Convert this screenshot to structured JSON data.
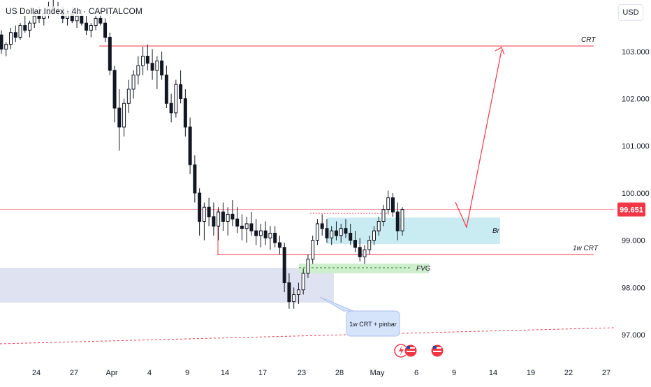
{
  "header": {
    "title": "US Dollar Index · 4h · CAPITALCOM",
    "currency": "USD"
  },
  "price_axis": {
    "ticks": [
      "103.000",
      "102.000",
      "101.000",
      "100.000",
      "99.000",
      "98.000",
      "97.000"
    ],
    "current_price": "99.651"
  },
  "time_axis": {
    "ticks": [
      "24",
      "27",
      "Apr",
      "4",
      "9",
      "14",
      "17",
      "23",
      "28",
      "May",
      "6",
      "9",
      "14",
      "19",
      "22",
      "27"
    ]
  },
  "annotations": {
    "crt_top": "CRT",
    "crt_1w": "1w CRT",
    "fvg": "FVG",
    "br": "Br",
    "callout": "1w CRT + pinbar"
  },
  "chart_data": {
    "type": "candlestick",
    "title": "US Dollar Index · 4h · CAPITALCOM",
    "currency": "USD",
    "ylim": [
      96.5,
      104.0
    ],
    "current_price": 99.651,
    "levels": {
      "crt": 103.15,
      "one_week_crt": 98.69,
      "fvg_top": 98.43,
      "fvg_bottom": 98.26
    },
    "series": [
      {
        "ohlc": [
          [
            103.35,
            103.45,
            102.95,
            103.05
          ],
          [
            103.05,
            103.2,
            102.9,
            103.15
          ],
          [
            103.15,
            103.5,
            103.05,
            103.4
          ],
          [
            103.4,
            103.55,
            103.2,
            103.3
          ],
          [
            103.3,
            103.6,
            103.25,
            103.55
          ],
          [
            103.55,
            103.75,
            103.4,
            103.45
          ],
          [
            103.45,
            103.65,
            103.3,
            103.6
          ],
          [
            103.6,
            103.85,
            103.5,
            103.75
          ],
          [
            103.75,
            103.95,
            103.6,
            103.7
          ],
          [
            103.7,
            103.85,
            103.55,
            103.8
          ],
          [
            103.8,
            104.05,
            103.7,
            103.95
          ],
          [
            103.95,
            104.1,
            103.8,
            103.9
          ],
          [
            103.9,
            104.05,
            103.75,
            103.85
          ],
          [
            103.85,
            103.95,
            103.6,
            103.7
          ],
          [
            103.7,
            103.9,
            103.55,
            103.8
          ],
          [
            103.8,
            103.95,
            103.6,
            103.65
          ],
          [
            103.65,
            103.85,
            103.5,
            103.75
          ],
          [
            103.75,
            103.9,
            103.55,
            103.6
          ],
          [
            103.6,
            103.75,
            103.35,
            103.45
          ],
          [
            103.45,
            103.6,
            103.3,
            103.55
          ],
          [
            103.55,
            103.75,
            103.45,
            103.7
          ],
          [
            103.7,
            103.85,
            103.55,
            103.6
          ],
          [
            103.6,
            103.7,
            103.2,
            103.3
          ],
          [
            103.3,
            103.4,
            102.5,
            102.6
          ],
          [
            102.6,
            102.7,
            101.5,
            101.8
          ],
          [
            101.8,
            102.2,
            100.9,
            101.4
          ],
          [
            101.4,
            102.0,
            101.2,
            101.9
          ],
          [
            101.9,
            102.4,
            101.7,
            102.2
          ],
          [
            102.2,
            102.6,
            102.0,
            102.5
          ],
          [
            102.5,
            102.9,
            102.3,
            102.7
          ],
          [
            102.7,
            103.1,
            102.5,
            102.9
          ],
          [
            102.9,
            103.15,
            102.6,
            102.75
          ],
          [
            102.75,
            103.05,
            102.4,
            102.6
          ],
          [
            102.6,
            102.9,
            102.2,
            102.8
          ],
          [
            102.8,
            103.0,
            102.4,
            102.5
          ],
          [
            102.5,
            102.7,
            101.8,
            101.9
          ],
          [
            101.9,
            102.1,
            101.5,
            101.7
          ],
          [
            101.7,
            102.4,
            101.6,
            102.3
          ],
          [
            102.3,
            102.6,
            101.9,
            102.0
          ],
          [
            102.0,
            102.2,
            101.2,
            101.4
          ],
          [
            101.4,
            101.6,
            100.4,
            100.6
          ],
          [
            100.6,
            100.8,
            99.8,
            100.0
          ],
          [
            100.0,
            100.1,
            99.1,
            99.4
          ],
          [
            99.4,
            99.8,
            99.0,
            99.7
          ],
          [
            99.7,
            99.9,
            99.3,
            99.5
          ],
          [
            99.5,
            99.8,
            99.1,
            99.3
          ],
          [
            99.3,
            99.7,
            99.0,
            99.6
          ],
          [
            99.6,
            99.8,
            99.2,
            99.4
          ],
          [
            99.4,
            99.7,
            99.1,
            99.55
          ],
          [
            99.55,
            99.85,
            99.3,
            99.45
          ],
          [
            99.45,
            99.7,
            99.15,
            99.3
          ],
          [
            99.3,
            99.55,
            99.0,
            99.25
          ],
          [
            99.25,
            99.5,
            98.95,
            99.35
          ],
          [
            99.35,
            99.6,
            99.1,
            99.2
          ],
          [
            99.2,
            99.45,
            98.9,
            99.1
          ],
          [
            99.1,
            99.35,
            98.85,
            99.2
          ],
          [
            99.2,
            99.4,
            98.9,
            99.05
          ],
          [
            99.05,
            99.3,
            98.8,
            99.15
          ],
          [
            99.15,
            99.3,
            98.85,
            98.95
          ],
          [
            98.95,
            99.1,
            98.7,
            98.85
          ],
          [
            98.85,
            98.95,
            97.9,
            98.1
          ],
          [
            98.1,
            98.3,
            97.55,
            97.7
          ],
          [
            97.7,
            98.0,
            97.55,
            97.85
          ],
          [
            97.85,
            98.1,
            97.65,
            97.95
          ],
          [
            97.95,
            98.4,
            97.85,
            98.3
          ],
          [
            98.3,
            98.7,
            98.2,
            98.6
          ],
          [
            98.6,
            99.1,
            98.5,
            99.0
          ],
          [
            99.0,
            99.45,
            98.9,
            99.35
          ],
          [
            99.35,
            99.55,
            99.1,
            99.25
          ],
          [
            99.25,
            99.45,
            98.95,
            99.05
          ],
          [
            99.05,
            99.3,
            98.9,
            99.2
          ],
          [
            99.2,
            99.4,
            99.0,
            99.1
          ],
          [
            99.1,
            99.35,
            98.95,
            99.25
          ],
          [
            99.25,
            99.45,
            99.05,
            99.15
          ],
          [
            99.15,
            99.35,
            98.9,
            99.0
          ],
          [
            99.0,
            99.2,
            98.75,
            98.85
          ],
          [
            98.85,
            99.05,
            98.55,
            98.65
          ],
          [
            98.65,
            98.9,
            98.5,
            98.8
          ],
          [
            98.8,
            99.1,
            98.7,
            99.0
          ],
          [
            99.0,
            99.3,
            98.9,
            99.2
          ],
          [
            99.2,
            99.5,
            99.1,
            99.4
          ],
          [
            99.4,
            99.75,
            99.3,
            99.65
          ],
          [
            99.65,
            100.05,
            99.55,
            99.9
          ],
          [
            99.9,
            100.0,
            99.5,
            99.6
          ],
          [
            99.6,
            99.8,
            99.0,
            99.2
          ],
          [
            99.2,
            99.7,
            99.1,
            99.65
          ]
        ]
      }
    ]
  }
}
